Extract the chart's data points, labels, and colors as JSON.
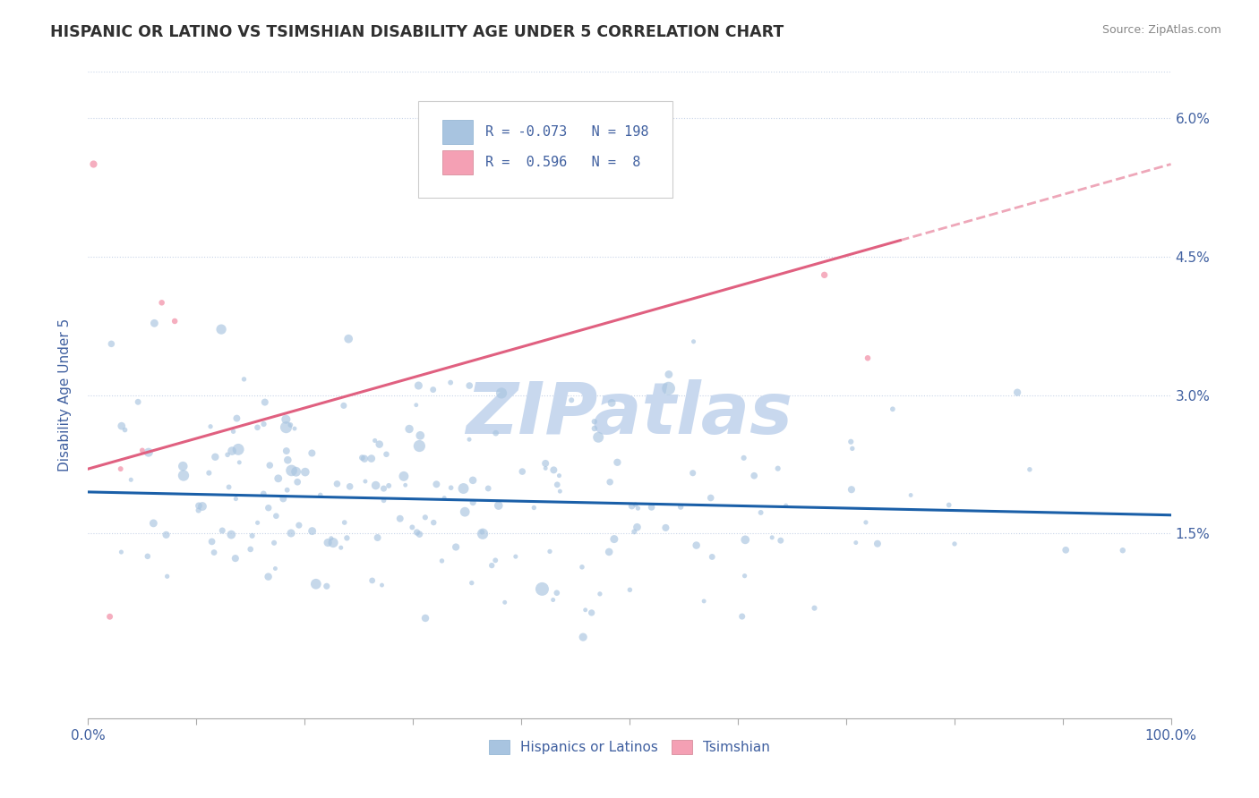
{
  "title": "HISPANIC OR LATINO VS TSIMSHIAN DISABILITY AGE UNDER 5 CORRELATION CHART",
  "source": "Source: ZipAtlas.com",
  "ylabel": "Disability Age Under 5",
  "xlim": [
    0,
    1.0
  ],
  "ylim": [
    -0.005,
    0.065
  ],
  "yticks": [
    0.015,
    0.03,
    0.045,
    0.06
  ],
  "yticklabels": [
    "1.5%",
    "3.0%",
    "4.5%",
    "6.0%"
  ],
  "blue_color": "#a8c4e0",
  "pink_color": "#f4a0b4",
  "blue_line_color": "#1a5fa8",
  "pink_line_color": "#e06080",
  "legend_R1": "-0.073",
  "legend_N1": "198",
  "legend_R2": "0.596",
  "legend_N2": "8",
  "watermark": "ZIPatlas",
  "watermark_color": "#c8d8ee",
  "blue_intercept": 0.0195,
  "blue_slope": -0.0025,
  "pink_intercept": 0.022,
  "pink_slope": 0.033,
  "background_color": "#ffffff",
  "grid_color": "#c8d4e8",
  "title_color": "#303030",
  "tick_label_color": "#4060a0",
  "legend_label_color": "Hispanics or Latinos",
  "legend_label_pink": "Tsimshian"
}
